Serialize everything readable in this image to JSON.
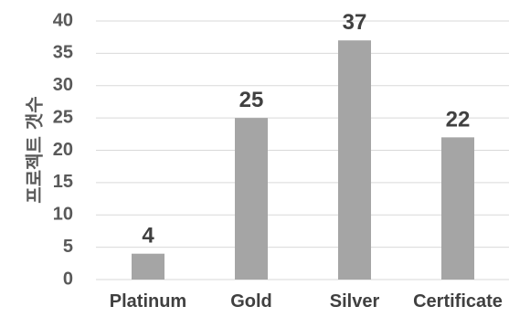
{
  "chart_data": {
    "type": "bar",
    "categories": [
      "Platinum",
      "Gold",
      "Silver",
      "Certificate"
    ],
    "values": [
      4,
      25,
      37,
      22
    ],
    "title": "",
    "xlabel": "",
    "ylabel": "프로젝트 갯수",
    "ylim": [
      0,
      40
    ],
    "yticks": [
      0,
      5,
      10,
      15,
      20,
      25,
      30,
      35,
      40
    ],
    "grid": true,
    "data_labels": true,
    "bar_color": "#a5a5a5"
  }
}
